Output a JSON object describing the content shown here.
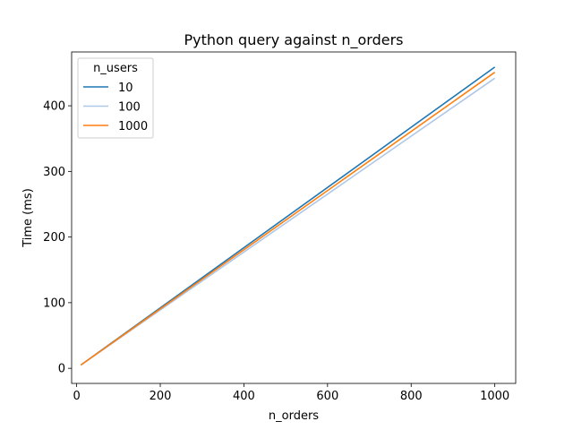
{
  "chart_data": {
    "type": "line",
    "title": "Python query against n_orders",
    "xlabel": "n_orders",
    "ylabel": "Time (ms)",
    "xlim": [
      -12,
      1050
    ],
    "ylim": [
      -23,
      482
    ],
    "xticks": [
      0,
      200,
      400,
      600,
      800,
      1000
    ],
    "yticks": [
      0,
      100,
      200,
      300,
      400
    ],
    "grid": false,
    "legend": {
      "title": "n_users",
      "placement": "top-left"
    },
    "x": [
      10,
      1000
    ],
    "series": [
      {
        "name": "10",
        "color": "#1f77b4",
        "values": [
          5,
          459
        ]
      },
      {
        "name": "100",
        "color": "#aec7e8",
        "values": [
          5,
          442
        ]
      },
      {
        "name": "1000",
        "color": "#ff7f0e",
        "values": [
          5,
          451
        ]
      }
    ]
  }
}
